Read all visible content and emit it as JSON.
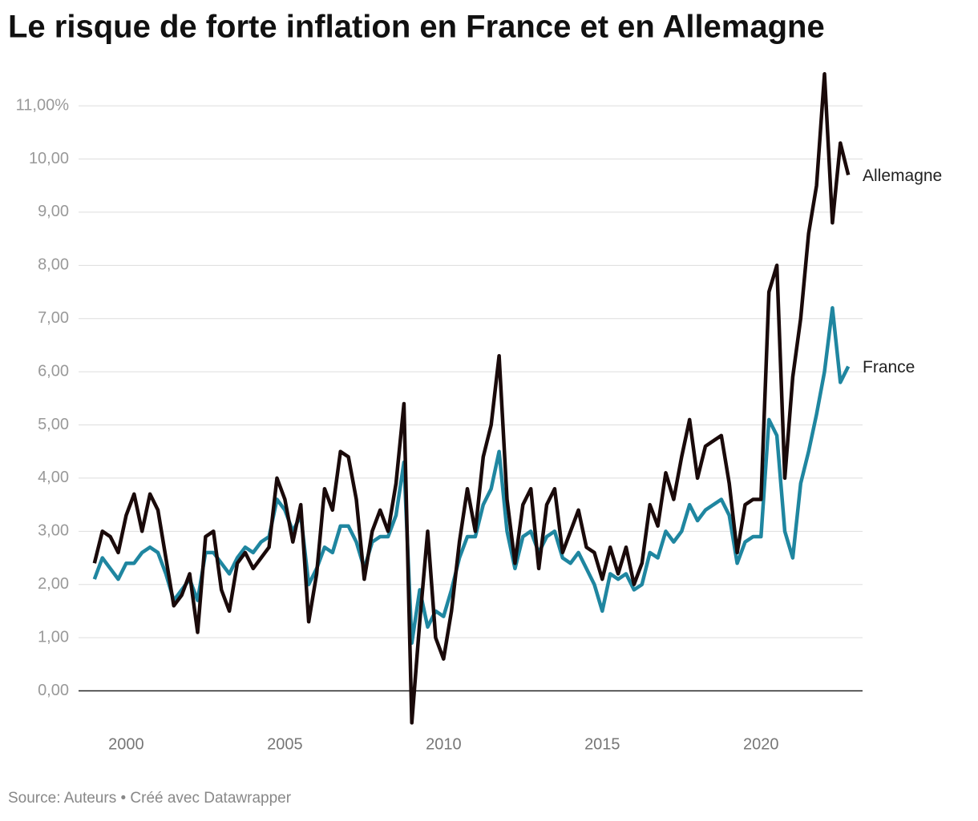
{
  "chart_data": {
    "type": "line",
    "title": "Le risque de forte inflation en France et en Allemagne",
    "source": "Source: Auteurs • Créé avec Datawrapper",
    "x": [
      1999,
      1999.25,
      1999.5,
      1999.75,
      2000,
      2000.25,
      2000.5,
      2000.75,
      2001,
      2001.25,
      2001.5,
      2001.75,
      2002,
      2002.25,
      2002.5,
      2002.75,
      2003,
      2003.25,
      2003.5,
      2003.75,
      2004,
      2004.25,
      2004.5,
      2004.75,
      2005,
      2005.25,
      2005.5,
      2005.75,
      2006,
      2006.25,
      2006.5,
      2006.75,
      2007,
      2007.25,
      2007.5,
      2007.75,
      2008,
      2008.25,
      2008.5,
      2008.75,
      2009,
      2009.25,
      2009.5,
      2009.75,
      2010,
      2010.25,
      2010.5,
      2010.75,
      2011,
      2011.25,
      2011.5,
      2011.75,
      2012,
      2012.25,
      2012.5,
      2012.75,
      2013,
      2013.25,
      2013.5,
      2013.75,
      2014,
      2014.25,
      2014.5,
      2014.75,
      2015,
      2015.25,
      2015.5,
      2015.75,
      2016,
      2016.25,
      2016.5,
      2016.75,
      2017,
      2017.25,
      2017.5,
      2017.75,
      2018,
      2018.25,
      2018.5,
      2018.75,
      2019,
      2019.25,
      2019.5,
      2019.75,
      2020,
      2020.25,
      2020.5,
      2020.75,
      2021,
      2021.25,
      2021.5,
      2021.75,
      2022,
      2022.25,
      2022.5,
      2022.75
    ],
    "series": [
      {
        "name": "France",
        "color": "#1f86a0",
        "values": [
          2.1,
          2.5,
          2.3,
          2.1,
          2.4,
          2.4,
          2.6,
          2.7,
          2.6,
          2.2,
          1.7,
          1.9,
          2.1,
          1.7,
          2.6,
          2.6,
          2.4,
          2.2,
          2.5,
          2.7,
          2.6,
          2.8,
          2.9,
          3.6,
          3.4,
          3.0,
          3.3,
          2.0,
          2.3,
          2.7,
          2.6,
          3.1,
          3.1,
          2.8,
          2.3,
          2.8,
          2.9,
          2.9,
          3.3,
          4.3,
          0.9,
          1.9,
          1.2,
          1.5,
          1.4,
          1.9,
          2.5,
          2.9,
          2.9,
          3.5,
          3.8,
          4.5,
          3.0,
          2.3,
          2.9,
          3.0,
          2.6,
          2.9,
          3.0,
          2.5,
          2.4,
          2.6,
          2.3,
          2.0,
          1.5,
          2.2,
          2.1,
          2.2,
          1.9,
          2.0,
          2.6,
          2.5,
          3.0,
          2.8,
          3.0,
          3.5,
          3.2,
          3.4,
          3.5,
          3.6,
          3.3,
          2.4,
          2.8,
          2.9,
          2.9,
          5.1,
          4.8,
          3.0,
          2.5,
          3.9,
          4.5,
          5.2,
          6.0,
          7.2,
          5.8,
          6.1
        ]
      },
      {
        "name": "Allemagne",
        "color": "#1a0a0a",
        "values": [
          2.4,
          3.0,
          2.9,
          2.6,
          3.3,
          3.7,
          3.0,
          3.7,
          3.4,
          2.5,
          1.6,
          1.8,
          2.2,
          1.1,
          2.9,
          3.0,
          1.9,
          1.5,
          2.4,
          2.6,
          2.3,
          2.5,
          2.7,
          4.0,
          3.6,
          2.8,
          3.5,
          1.3,
          2.2,
          3.8,
          3.4,
          4.5,
          4.4,
          3.6,
          2.1,
          3.0,
          3.4,
          3.0,
          3.9,
          5.4,
          -0.6,
          1.3,
          3.0,
          1.0,
          0.6,
          1.5,
          2.8,
          3.8,
          3.0,
          4.4,
          5.0,
          6.3,
          3.6,
          2.4,
          3.5,
          3.8,
          2.3,
          3.5,
          3.8,
          2.6,
          3.0,
          3.4,
          2.7,
          2.6,
          2.1,
          2.7,
          2.2,
          2.7,
          2.0,
          2.4,
          3.5,
          3.1,
          4.1,
          3.6,
          4.4,
          5.1,
          4.0,
          4.6,
          4.7,
          4.8,
          3.9,
          2.6,
          3.5,
          3.6,
          3.6,
          7.5,
          8.0,
          4.0,
          5.9,
          7.0,
          8.6,
          9.5,
          11.6,
          8.8,
          10.3,
          9.7
        ]
      }
    ],
    "xlim": [
      1998.5,
      2023.2
    ],
    "xticks": [
      2000,
      2005,
      2010,
      2015,
      2020
    ],
    "ylim": [
      -0.7,
      11.8
    ],
    "yticks": [
      {
        "value": 0,
        "label": "0,00"
      },
      {
        "value": 1,
        "label": "1,00"
      },
      {
        "value": 2,
        "label": "2,00"
      },
      {
        "value": 3,
        "label": "3,00"
      },
      {
        "value": 4,
        "label": "4,00"
      },
      {
        "value": 5,
        "label": "5,00"
      },
      {
        "value": 6,
        "label": "6,00"
      },
      {
        "value": 7,
        "label": "7,00"
      },
      {
        "value": 8,
        "label": "8,00"
      },
      {
        "value": 9,
        "label": "9,00"
      },
      {
        "value": 10,
        "label": "10,00"
      },
      {
        "value": 11,
        "label": "11,00%"
      }
    ],
    "grid": true
  }
}
